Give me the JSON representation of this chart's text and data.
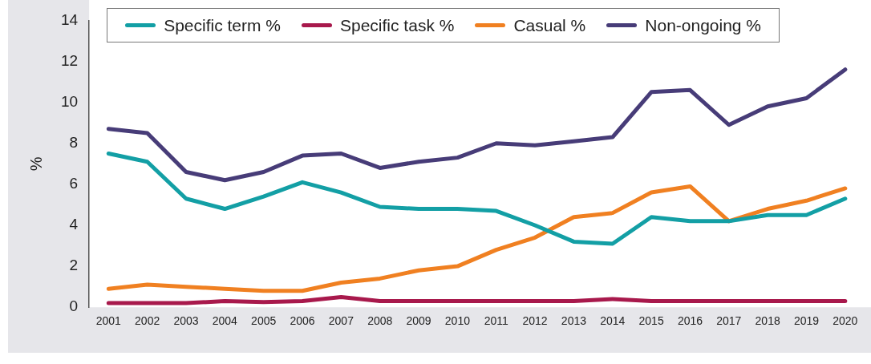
{
  "chart_data": {
    "type": "line",
    "ylabel": "%",
    "categories": [
      "2001",
      "2002",
      "2003",
      "2004",
      "2005",
      "2006",
      "2007",
      "2008",
      "2009",
      "2010",
      "2011",
      "2012",
      "2013",
      "2014",
      "2015",
      "2016",
      "2017",
      "2018",
      "2019",
      "2020"
    ],
    "series": [
      {
        "name": "Specific term %",
        "color": "#139fa5",
        "values": [
          7.5,
          7.1,
          5.3,
          4.8,
          5.4,
          6.1,
          5.6,
          4.9,
          4.8,
          4.8,
          4.7,
          4.0,
          3.2,
          3.1,
          4.4,
          4.2,
          4.2,
          4.5,
          4.5,
          5.3
        ]
      },
      {
        "name": "Specific task %",
        "color": "#a8194c",
        "values": [
          0.2,
          0.2,
          0.2,
          0.3,
          0.25,
          0.3,
          0.5,
          0.3,
          0.3,
          0.3,
          0.3,
          0.3,
          0.3,
          0.4,
          0.3,
          0.3,
          0.3,
          0.3,
          0.3,
          0.3
        ]
      },
      {
        "name": "Casual %",
        "color": "#f08021",
        "values": [
          0.9,
          1.1,
          1.0,
          0.9,
          0.8,
          0.8,
          1.2,
          1.4,
          1.8,
          2.0,
          2.8,
          3.4,
          4.4,
          4.6,
          5.6,
          5.9,
          4.2,
          4.8,
          5.2,
          5.8
        ]
      },
      {
        "name": "Non-ongoing %",
        "color": "#473c78",
        "values": [
          8.7,
          8.5,
          6.6,
          6.2,
          6.6,
          7.4,
          7.5,
          6.8,
          7.1,
          7.3,
          8.0,
          7.9,
          8.1,
          8.3,
          10.5,
          10.6,
          8.9,
          9.8,
          10.2,
          11.6
        ]
      }
    ],
    "ylim": [
      0,
      14
    ],
    "yticks": [
      0,
      2,
      4,
      6,
      8,
      10,
      12,
      14
    ],
    "grid": false,
    "legend": "top",
    "marker": "none",
    "line_style": "solid"
  }
}
